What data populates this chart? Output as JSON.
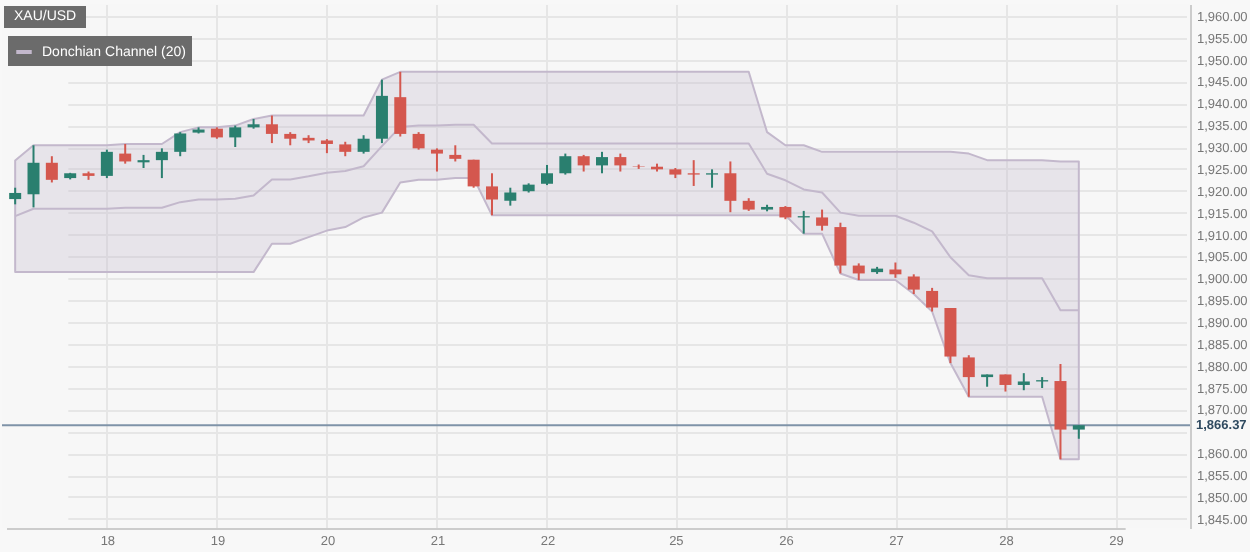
{
  "chart_data": {
    "type": "candlestick",
    "title": "XAU/USD",
    "categories": [
      null,
      null,
      null,
      null,
      null,
      "18",
      null,
      null,
      null,
      null,
      null,
      "19",
      null,
      null,
      null,
      null,
      null,
      "20",
      null,
      null,
      null,
      null,
      null,
      "21",
      null,
      null,
      null,
      null,
      null,
      "22",
      null,
      null,
      null,
      null,
      null,
      null,
      "25",
      null,
      null,
      null,
      null,
      null,
      "26",
      null,
      null,
      null,
      null,
      null,
      "27",
      null,
      null,
      null,
      null,
      null,
      "28",
      null,
      null,
      null,
      null,
      null,
      "29"
    ],
    "ohlc": [
      [
        1918.1,
        1920.7,
        1916.9,
        1919.5
      ],
      [
        1919.2,
        1930.4,
        1916.2,
        1926.4
      ],
      [
        1926.4,
        1927.9,
        1921.9,
        1922.5
      ],
      [
        1922.9,
        1924.1,
        1922.6,
        1924.0
      ],
      [
        1924.0,
        1924.4,
        1922.5,
        1923.4
      ],
      [
        1923.4,
        1929.4,
        1922.9,
        1928.9
      ],
      [
        1928.5,
        1930.7,
        1926.2,
        1926.7
      ],
      [
        1926.5,
        1928.2,
        1925.2,
        1927.0
      ],
      [
        1927.0,
        1929.7,
        1922.9,
        1928.9
      ],
      [
        1928.9,
        1933.4,
        1927.9,
        1933.1
      ],
      [
        1933.3,
        1934.5,
        1933.1,
        1934.0
      ],
      [
        1934.2,
        1934.5,
        1931.9,
        1932.2
      ],
      [
        1932.2,
        1934.9,
        1930.0,
        1934.5
      ],
      [
        1934.5,
        1936.4,
        1934.2,
        1935.2
      ],
      [
        1935.2,
        1937.2,
        1930.9,
        1933.0
      ],
      [
        1933.0,
        1933.4,
        1930.4,
        1931.9
      ],
      [
        1932.1,
        1932.7,
        1930.9,
        1931.5
      ],
      [
        1931.5,
        1931.8,
        1928.6,
        1930.7
      ],
      [
        1930.6,
        1931.2,
        1927.9,
        1928.9
      ],
      [
        1928.9,
        1932.7,
        1928.5,
        1931.9
      ],
      [
        1931.9,
        1945.4,
        1930.9,
        1941.7
      ],
      [
        1941.4,
        1947.2,
        1932.4,
        1933.0
      ],
      [
        1933.0,
        1933.4,
        1929.4,
        1929.7
      ],
      [
        1929.4,
        1929.7,
        1924.4,
        1928.5
      ],
      [
        1928.2,
        1930.4,
        1926.7,
        1927.3
      ],
      [
        1927.1,
        1927.1,
        1920.7,
        1921.0
      ],
      [
        1921.0,
        1924.0,
        1914.4,
        1918.0
      ],
      [
        1917.7,
        1920.7,
        1916.6,
        1919.6
      ],
      [
        1919.9,
        1921.7,
        1919.6,
        1921.4
      ],
      [
        1921.6,
        1925.9,
        1921.3,
        1924.0
      ],
      [
        1924.0,
        1928.5,
        1923.7,
        1927.9
      ],
      [
        1927.9,
        1928.2,
        1924.4,
        1925.8
      ],
      [
        1925.8,
        1928.9,
        1924.0,
        1927.7
      ],
      [
        1927.7,
        1928.5,
        1924.4,
        1925.8
      ],
      [
        1925.6,
        1926.0,
        1925.0,
        1925.5
      ],
      [
        1925.5,
        1926.2,
        1924.4,
        1924.9
      ],
      [
        1924.9,
        1925.2,
        1922.9,
        1923.7
      ],
      [
        1924.0,
        1927.0,
        1921.1,
        1923.7
      ],
      [
        1923.7,
        1924.9,
        1920.7,
        1924.0
      ],
      [
        1924.0,
        1926.7,
        1915.1,
        1917.7
      ],
      [
        1917.7,
        1918.3,
        1915.4,
        1915.7
      ],
      [
        1915.7,
        1916.8,
        1915.3,
        1916.3
      ],
      [
        1916.3,
        1916.5,
        1913.5,
        1913.9
      ],
      [
        1913.9,
        1915.4,
        1910.2,
        1914.2
      ],
      [
        1913.9,
        1915.7,
        1910.9,
        1912.0
      ],
      [
        1911.7,
        1912.7,
        1901.1,
        1902.9
      ],
      [
        1902.9,
        1903.4,
        1899.6,
        1901.1
      ],
      [
        1901.4,
        1902.6,
        1901.0,
        1902.2
      ],
      [
        1902.0,
        1903.6,
        1900.1,
        1900.9
      ],
      [
        1900.4,
        1900.9,
        1896.4,
        1897.4
      ],
      [
        1897.1,
        1897.8,
        1892.4,
        1893.3
      ],
      [
        1893.2,
        1893.2,
        1880.6,
        1882.1
      ],
      [
        1881.9,
        1882.4,
        1872.9,
        1877.4
      ],
      [
        1877.4,
        1878.0,
        1875.2,
        1878.0
      ],
      [
        1878.0,
        1878.0,
        1874.1,
        1875.6
      ],
      [
        1875.6,
        1878.3,
        1874.4,
        1876.4
      ],
      [
        1876.4,
        1877.4,
        1874.9,
        1876.7
      ],
      [
        1876.5,
        1880.4,
        1858.6,
        1865.4
      ],
      [
        1865.4,
        1866.4,
        1863.3,
        1866.4
      ],
      null,
      null
    ],
    "colors": [
      "#2a7f6f",
      "#2a7f6f",
      "#d4574e",
      "#2a7f6f",
      "#d4574e",
      "#2a7f6f",
      "#d4574e",
      "#2a7f6f",
      "#2a7f6f",
      "#2a7f6f",
      "#2a7f6f",
      "#d4574e",
      "#2a7f6f",
      "#2a7f6f",
      "#d4574e",
      "#d4574e",
      "#d4574e",
      "#d4574e",
      "#d4574e",
      "#2a7f6f",
      "#2a7f6f",
      "#d4574e",
      "#d4574e",
      "#d4574e",
      "#d4574e",
      "#d4574e",
      "#d4574e",
      "#2a7f6f",
      "#2a7f6f",
      "#2a7f6f",
      "#2a7f6f",
      "#d4574e",
      "#2a7f6f",
      "#d4574e",
      "#d4574e",
      "#d4574e",
      "#d4574e",
      "#d4574e",
      "#2a7f6f",
      "#d4574e",
      "#d4574e",
      "#2a7f6f",
      "#d4574e",
      "#2a7f6f",
      "#d4574e",
      "#d4574e",
      "#d4574e",
      "#2a7f6f",
      "#d4574e",
      "#d4574e",
      "#d4574e",
      "#d4574e",
      "#d4574e",
      "#2a7f6f",
      "#d4574e",
      "#2a7f6f",
      "#2a7f6f",
      "#d4574e",
      "#2a7f6f",
      null,
      null
    ],
    "series": [
      {
        "name": "Donchian Channel (20)",
        "type": "line",
        "color": "#c3b8cc",
        "values": [
          1914.2,
          1915.9,
          1915.9,
          1915.9,
          1915.9,
          1915.9,
          1916.1,
          1916.1,
          1916.1,
          1917.4,
          1918.0,
          1918.0,
          1918.2,
          1918.9,
          1922.6,
          1922.6,
          1923.3,
          1924.1,
          1924.5,
          1925.6,
          1930.2,
          1934.6,
          1934.9,
          1934.9,
          1935.1,
          1935.1,
          1930.8,
          1930.8,
          1930.8,
          1930.8,
          1930.8,
          1930.8,
          1930.8,
          1930.8,
          1930.8,
          1930.8,
          1930.8,
          1930.8,
          1930.8,
          1930.8,
          1930.8,
          1923.9,
          1922.4,
          1920.3,
          1919.6,
          1915.0,
          1914.3,
          1914.3,
          1914.3,
          1912.7,
          1910.7,
          1904.8,
          1900.7,
          1900.0,
          1900.0,
          1900.0,
          1900.0,
          1892.7,
          1892.7,
          null,
          null
        ],
        "lower": [
          1901.4,
          1901.4,
          1901.4,
          1901.4,
          1901.4,
          1901.4,
          1901.4,
          1901.4,
          1901.4,
          1901.4,
          1901.4,
          1901.4,
          1901.4,
          1901.4,
          1907.9,
          1907.9,
          1909.4,
          1910.9,
          1911.7,
          1913.9,
          1915.0,
          1921.9,
          1922.5,
          1922.5,
          1922.9,
          1922.9,
          1914.4,
          1914.4,
          1914.4,
          1914.4,
          1914.4,
          1914.4,
          1914.4,
          1914.4,
          1914.4,
          1914.4,
          1914.4,
          1914.4,
          1914.4,
          1914.4,
          1914.4,
          1914.4,
          1914.4,
          1910.2,
          1910.2,
          1901.1,
          1899.6,
          1899.6,
          1899.6,
          1896.4,
          1892.4,
          1880.6,
          1872.9,
          1872.9,
          1872.9,
          1872.9,
          1872.9,
          1858.6,
          1858.6,
          null,
          null
        ],
        "upper": [
          1926.9,
          1930.4,
          1930.4,
          1930.4,
          1930.4,
          1930.4,
          1930.7,
          1930.7,
          1930.7,
          1933.4,
          1934.5,
          1934.5,
          1934.9,
          1936.4,
          1937.2,
          1937.2,
          1937.2,
          1937.2,
          1937.2,
          1937.2,
          1945.4,
          1947.2,
          1947.2,
          1947.2,
          1947.2,
          1947.2,
          1947.2,
          1947.2,
          1947.2,
          1947.2,
          1947.2,
          1947.2,
          1947.2,
          1947.2,
          1947.2,
          1947.2,
          1947.2,
          1947.2,
          1947.2,
          1947.2,
          1947.2,
          1933.4,
          1930.4,
          1930.4,
          1928.9,
          1928.9,
          1928.9,
          1928.9,
          1928.9,
          1928.9,
          1928.9,
          1928.9,
          1928.5,
          1927.0,
          1927.0,
          1927.0,
          1927.0,
          1926.7,
          1926.7,
          null,
          null
        ]
      }
    ],
    "ylim": [
      1842.9,
      1962.7
    ],
    "yticks": [
      {
        "value": 1845,
        "label": "1,845.00"
      },
      {
        "value": 1850,
        "label": "1,850.00"
      },
      {
        "value": 1855,
        "label": "1,855.00"
      },
      {
        "value": 1860,
        "label": "1,860.00"
      },
      {
        "value": 1865,
        "label": null
      },
      {
        "value": 1870,
        "label": "1,870.00"
      },
      {
        "value": 1875,
        "label": "1,875.00"
      },
      {
        "value": 1880,
        "label": "1,880.00"
      },
      {
        "value": 1885,
        "label": "1,885.00"
      },
      {
        "value": 1890,
        "label": "1,890.00"
      },
      {
        "value": 1895,
        "label": "1,895.00"
      },
      {
        "value": 1900,
        "label": "1,900.00"
      },
      {
        "value": 1905,
        "label": "1,905.00"
      },
      {
        "value": 1910,
        "label": "1,910.00"
      },
      {
        "value": 1915,
        "label": "1,915.00"
      },
      {
        "value": 1920,
        "label": "1,920.00"
      },
      {
        "value": 1925,
        "label": "1,925.00"
      },
      {
        "value": 1930,
        "label": "1,930.00"
      },
      {
        "value": 1935,
        "label": "1,935.00"
      },
      {
        "value": 1940,
        "label": "1,940.00"
      },
      {
        "value": 1945,
        "label": "1,945.00"
      },
      {
        "value": 1950,
        "label": "1,950.00"
      },
      {
        "value": 1955,
        "label": "1,955.00"
      },
      {
        "value": 1960,
        "label": "1,960.00"
      }
    ],
    "grid": true,
    "legend": "top left",
    "ref_lines": [
      {
        "axis": "y",
        "value": 1866.37,
        "label": "1,866.37",
        "color": "#7f93a8"
      }
    ]
  }
}
